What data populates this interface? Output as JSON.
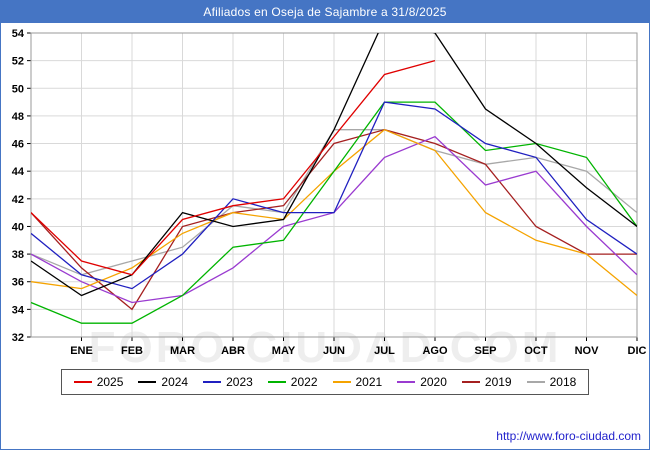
{
  "title": "Afiliados en Oseja de Sajambre a 31/8/2025",
  "watermark": "FORO-CIUDAD.COM",
  "footer": {
    "link": "http://www.foro-ciudad.com"
  },
  "colors": {
    "titlebar": "#4575c4",
    "grid": "#d9d9d9",
    "plot_border": "#9a9a9a",
    "link": "#2222cc"
  },
  "chart_data": {
    "type": "line",
    "categories": [
      "",
      "ENE",
      "FEB",
      "MAR",
      "ABR",
      "MAY",
      "JUN",
      "JUL",
      "AGO",
      "SEP",
      "OCT",
      "NOV",
      "DIC"
    ],
    "ylim": [
      32,
      54
    ],
    "ytick_step": 2,
    "grid": true,
    "legend_position": "bottom",
    "title": "Afiliados en Oseja de Sajambre a 31/8/2025",
    "xlabel": "",
    "ylabel": "",
    "series": [
      {
        "name": "2025",
        "color": "#e00000",
        "values": [
          41,
          37.5,
          36.5,
          40.5,
          41.5,
          42,
          46.5,
          51,
          52,
          null,
          null,
          null,
          null
        ]
      },
      {
        "name": "2024",
        "color": "#000000",
        "values": [
          37.5,
          35,
          36.5,
          41,
          40,
          40.5,
          47,
          55,
          54,
          48.5,
          46,
          42.8,
          40
        ]
      },
      {
        "name": "2023",
        "color": "#2020c0",
        "values": [
          39.5,
          36.5,
          35.5,
          38,
          42,
          41,
          41,
          49,
          48.5,
          46,
          45,
          40.5,
          38
        ]
      },
      {
        "name": "2022",
        "color": "#00b400",
        "values": [
          34.5,
          33,
          33,
          35,
          38.5,
          39,
          44,
          49,
          49,
          45.5,
          46,
          45,
          40
        ]
      },
      {
        "name": "2021",
        "color": "#f5a300",
        "values": [
          36,
          35.5,
          37,
          39.5,
          41,
          40.5,
          44,
          47,
          45.5,
          41,
          39,
          38,
          35
        ]
      },
      {
        "name": "2020",
        "color": "#9a3bd0",
        "values": [
          38,
          36,
          34.5,
          35,
          37,
          40,
          41,
          45,
          46.5,
          43,
          44,
          40,
          36.5
        ]
      },
      {
        "name": "2019",
        "color": "#a52020",
        "values": [
          41,
          37,
          34,
          40,
          41,
          41.5,
          46,
          47,
          46,
          44.5,
          40,
          38,
          38
        ]
      },
      {
        "name": "2018",
        "color": "#a8a8a8",
        "values": [
          38,
          36.5,
          37.5,
          38.5,
          41.5,
          41,
          47,
          47,
          45.5,
          44.5,
          45,
          44,
          41
        ]
      }
    ]
  }
}
